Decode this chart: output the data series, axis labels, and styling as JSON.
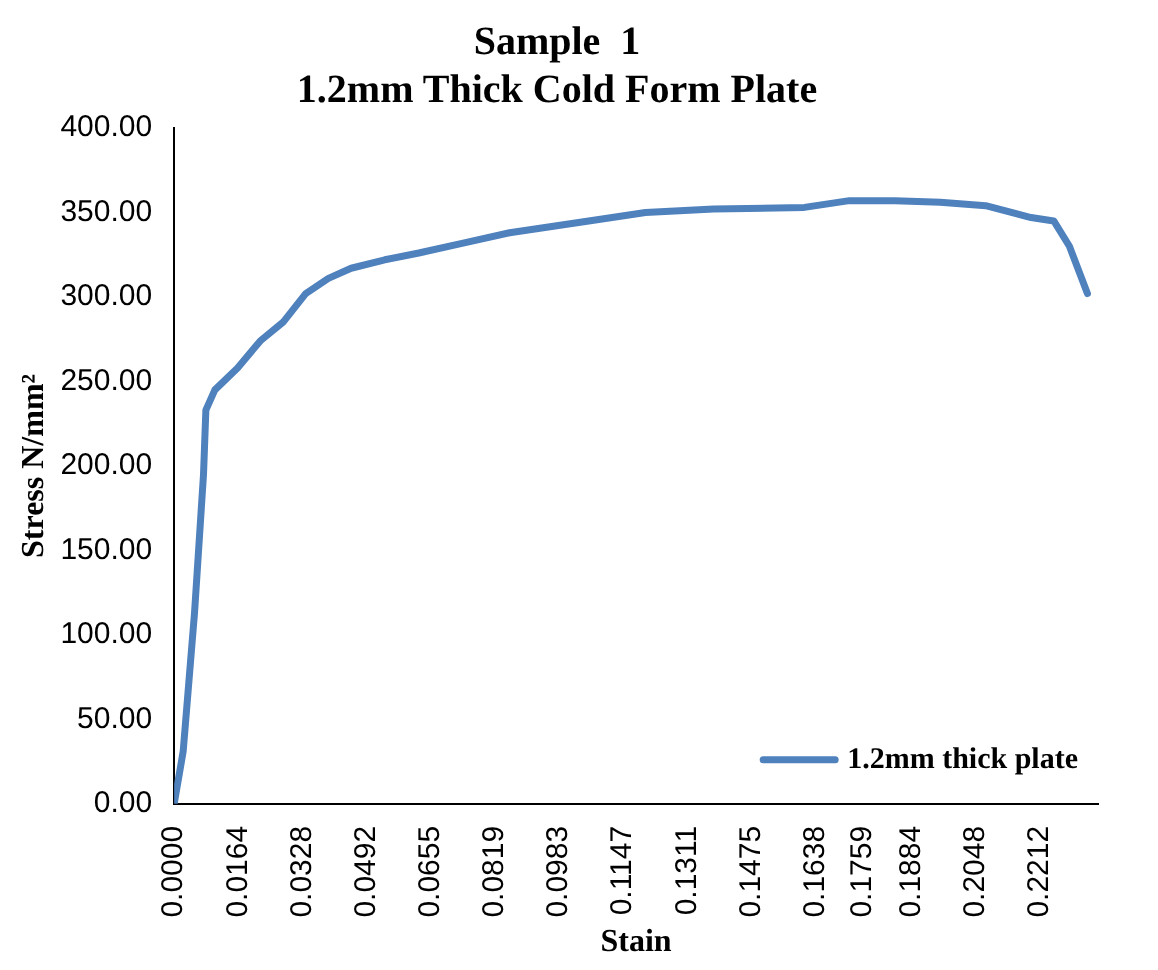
{
  "chart_data": {
    "type": "line",
    "title": "Sample  1",
    "subtitle": "1.2mm Thick Cold Form Plate",
    "xlabel": "Stain",
    "ylabel": "Stress N/mm²",
    "series": [
      {
        "name": "1.2mm thick plate",
        "color": "#4f81bd",
        "x": [
          0,
          0.0023,
          0.0052,
          0.0075,
          0.0081,
          0.0104,
          0.0162,
          0.022,
          0.0278,
          0.0336,
          0.0394,
          0.0452,
          0.0538,
          0.0625,
          0.0741,
          0.0857,
          0.0973,
          0.1089,
          0.1204,
          0.1378,
          0.161,
          0.1725,
          0.1841,
          0.1957,
          0.2073,
          0.2189,
          0.2247,
          0.2287,
          0.2333
        ],
        "values": [
          0,
          31,
          113,
          195,
          233,
          245,
          258,
          274,
          285,
          302,
          311,
          317,
          322,
          326,
          332,
          338,
          342,
          346,
          350,
          352,
          353,
          357,
          357,
          356,
          354,
          347,
          345,
          330,
          302
        ]
      }
    ],
    "xlim": [
      0,
      0.236
    ],
    "xticks": [
      {
        "value": 0,
        "label": "0.0000"
      },
      {
        "value": 0.0164,
        "label": "0.0164"
      },
      {
        "value": 0.0328,
        "label": "0.0328"
      },
      {
        "value": 0.0492,
        "label": "0.0492"
      },
      {
        "value": 0.0655,
        "label": "0.0655"
      },
      {
        "value": 0.0819,
        "label": "0.0819"
      },
      {
        "value": 0.0983,
        "label": "0.0983"
      },
      {
        "value": 0.1147,
        "label": "0.1147"
      },
      {
        "value": 0.1311,
        "label": "0.1311"
      },
      {
        "value": 0.1475,
        "label": "0.1475"
      },
      {
        "value": 0.1638,
        "label": "0.1638"
      },
      {
        "value": 0.1759,
        "label": "0.1759"
      },
      {
        "value": 0.1884,
        "label": "0.1884"
      },
      {
        "value": 0.2048,
        "label": "0.2048"
      },
      {
        "value": 0.2212,
        "label": "0.2212"
      }
    ],
    "ylim": [
      0,
      400
    ],
    "yticks": [
      {
        "value": 0,
        "label": "0.00"
      },
      {
        "value": 50,
        "label": "50.00"
      },
      {
        "value": 100,
        "label": "100.00"
      },
      {
        "value": 150,
        "label": "150.00"
      },
      {
        "value": 200,
        "label": "200.00"
      },
      {
        "value": 250,
        "label": "250.00"
      },
      {
        "value": 300,
        "label": "300.00"
      },
      {
        "value": 350,
        "label": "350.00"
      },
      {
        "value": 400,
        "label": "400.00"
      }
    ],
    "grid": false,
    "legend": "bottom right",
    "marker": "none",
    "line_style": "solid"
  }
}
